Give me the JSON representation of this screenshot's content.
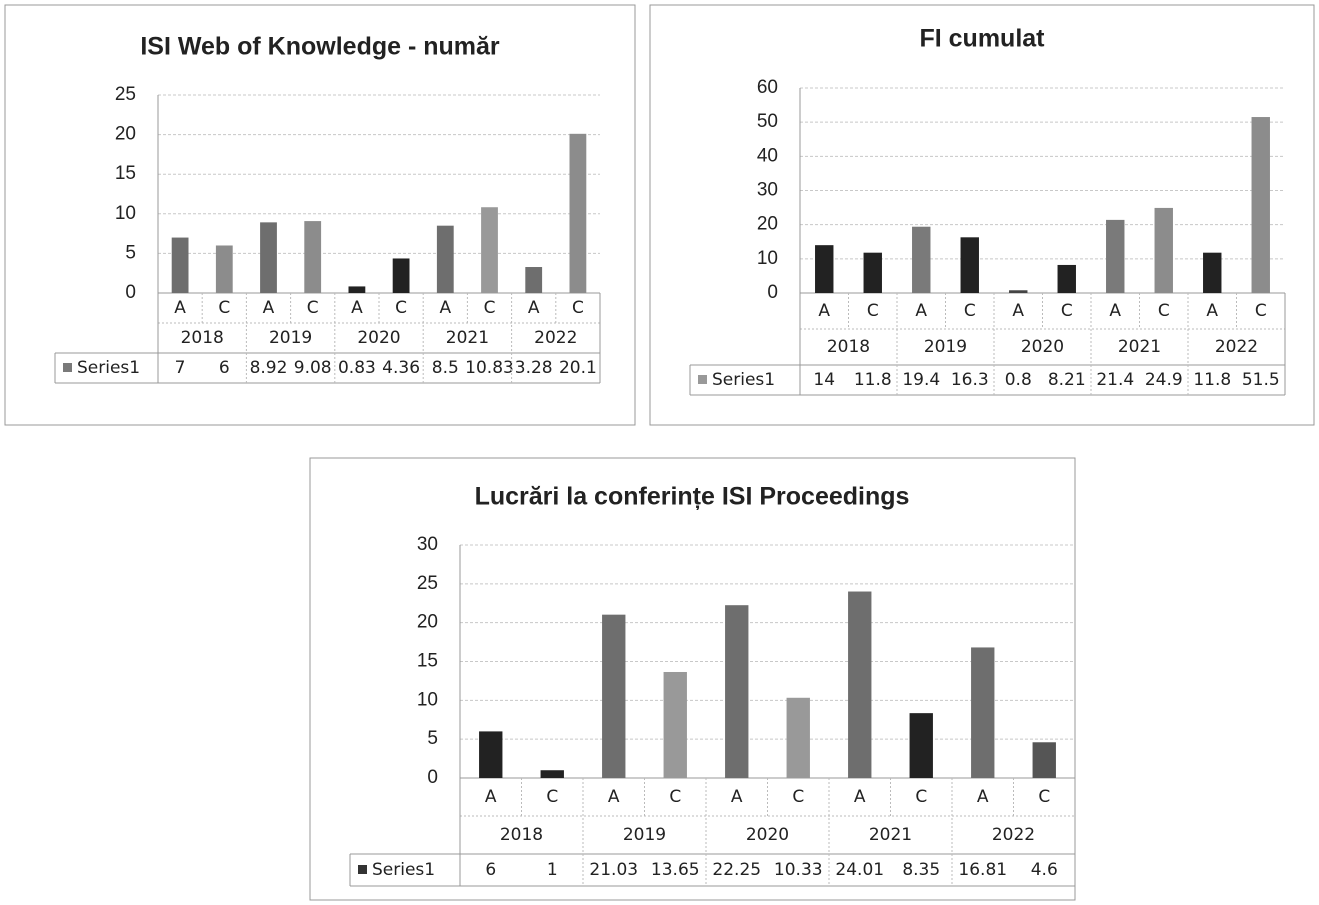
{
  "chart_data": [
    {
      "type": "bar",
      "title": "ISI Web of Knowledge - număr",
      "categories": [
        "A",
        "C",
        "A",
        "C",
        "A",
        "C",
        "A",
        "C",
        "A",
        "C"
      ],
      "groups": [
        "2018",
        "2019",
        "2020",
        "2021",
        "2022"
      ],
      "series": [
        {
          "name": "Series1",
          "color": "#7a7a7a",
          "values": [
            7,
            6,
            8.92,
            9.08,
            0.83,
            4.36,
            8.5,
            10.83,
            3.28,
            20.1
          ],
          "colors": [
            "#6e6e6e",
            "#8c8c8c",
            "#6e6e6e",
            "#8c8c8c",
            "#222222",
            "#222222",
            "#6e6e6e",
            "#999999",
            "#6e6e6e",
            "#8c8c8c"
          ]
        }
      ],
      "ylim": [
        0,
        25
      ],
      "yticks": [
        0,
        5,
        10,
        15,
        20,
        25
      ],
      "grid": true
    },
    {
      "type": "bar",
      "title": "FI cumulat",
      "categories": [
        "A",
        "C",
        "A",
        "C",
        "A",
        "C",
        "A",
        "C",
        "A",
        "C"
      ],
      "groups": [
        "2018",
        "2019",
        "2020",
        "2021",
        "2022"
      ],
      "series": [
        {
          "name": "Series1",
          "color": "#999999",
          "values": [
            14,
            11.8,
            19.4,
            16.3,
            0.8,
            8.21,
            21.4,
            24.9,
            11.8,
            51.5
          ],
          "colors": [
            "#222222",
            "#222222",
            "#7a7a7a",
            "#222222",
            "#444444",
            "#222222",
            "#7a7a7a",
            "#8c8c8c",
            "#222222",
            "#8c8c8c"
          ]
        }
      ],
      "ylim": [
        0,
        60
      ],
      "yticks": [
        0,
        10,
        20,
        30,
        40,
        50,
        60
      ],
      "grid": true
    },
    {
      "type": "bar",
      "title": "Lucrări la conferințe ISI Proceedings",
      "categories": [
        "A",
        "C",
        "A",
        "C",
        "A",
        "C",
        "A",
        "C",
        "A",
        "C"
      ],
      "groups": [
        "2018",
        "2019",
        "2020",
        "2021",
        "2022"
      ],
      "series": [
        {
          "name": "Series1",
          "color": "#333333",
          "values": [
            6,
            1,
            21.03,
            13.65,
            22.25,
            10.33,
            24.01,
            8.35,
            16.81,
            4.6
          ],
          "colors": [
            "#222222",
            "#222222",
            "#6e6e6e",
            "#999999",
            "#6e6e6e",
            "#999999",
            "#6e6e6e",
            "#222222",
            "#6e6e6e",
            "#555555"
          ]
        }
      ],
      "ylim": [
        0,
        30
      ],
      "yticks": [
        0,
        5,
        10,
        15,
        20,
        25,
        30
      ],
      "grid": true
    }
  ]
}
